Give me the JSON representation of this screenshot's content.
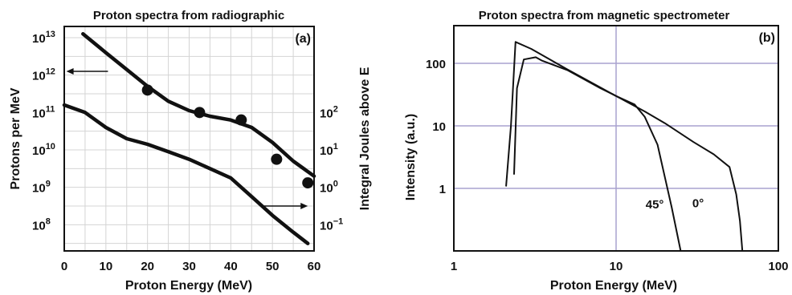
{
  "chart_data": [
    {
      "id": "a",
      "type": "line",
      "title": "Proton spectra from radiographic",
      "panel_label": "(a)",
      "xlabel": "Proton Energy (MeV)",
      "ylabel": "Protons per MeV",
      "y2label": "Integral Joules above E",
      "xlim": [
        0,
        60
      ],
      "ylim_log10": [
        7.3,
        13.3
      ],
      "y2_offset_log10": 9,
      "x_ticks": [
        0,
        10,
        20,
        30,
        40,
        50,
        60
      ],
      "x_tick_labels": [
        "0",
        "10",
        "20",
        "30",
        "40",
        "50",
        "60"
      ],
      "y_ticks_log10": [
        8,
        9,
        10,
        11,
        12,
        13
      ],
      "y_tick_mantissa": "10",
      "y_tick_exponents": [
        "8",
        "9",
        "10",
        "11",
        "12",
        "13"
      ],
      "y2_ticks_log10": [
        -1,
        0,
        1,
        2
      ],
      "y2_tick_mantissa": "10",
      "y2_tick_exponents": [
        "−1",
        "0",
        "1",
        "2"
      ],
      "grid": true,
      "series": [
        {
          "axis": "left",
          "x": [
            4.5,
            10,
            15,
            20,
            25,
            30,
            35,
            40,
            45,
            50,
            55,
            60
          ],
          "log10_y": [
            13.1,
            12.6,
            12.15,
            11.7,
            11.3,
            11.05,
            10.9,
            10.8,
            10.6,
            10.2,
            9.7,
            9.3
          ]
        },
        {
          "axis": "left",
          "x": [
            0,
            5,
            10,
            15,
            20,
            25,
            30,
            35,
            40,
            45,
            50,
            55,
            58.5
          ],
          "log10_y": [
            11.2,
            11.0,
            10.6,
            10.3,
            10.15,
            9.95,
            9.75,
            9.5,
            9.25,
            8.75,
            8.25,
            7.8,
            7.5
          ]
        }
      ],
      "markers": {
        "x": [
          20,
          32.5,
          42.5,
          51,
          58.5
        ],
        "log10_y": [
          11.6,
          11.0,
          10.8,
          9.75,
          9.12
        ]
      },
      "arrows": [
        {
          "from_x": 10.5,
          "to_x": 0.5,
          "log10_y": 12.1
        },
        {
          "from_x": 48,
          "to_x": 58.5,
          "log10_y": 8.5
        }
      ]
    },
    {
      "id": "b",
      "type": "line",
      "title": "Proton spectra from magnetic spectrometer",
      "panel_label": "(b)",
      "xlabel": "Proton Energy (MeV)",
      "ylabel": "Intensity (a.u.)",
      "xscale": "log",
      "yscale": "log",
      "xlim": [
        1,
        100
      ],
      "ylim": [
        0.1,
        400
      ],
      "x_ticks": [
        1,
        10,
        100
      ],
      "x_tick_labels": [
        "1",
        "10",
        "100"
      ],
      "y_ticks": [
        1,
        10,
        100
      ],
      "y_tick_labels": [
        "1",
        "10",
        "100"
      ],
      "grid": true,
      "series": [
        {
          "name": "0°",
          "x": [
            2.1,
            2.25,
            2.4,
            3,
            5,
            10,
            15,
            20,
            30,
            40,
            50,
            55,
            58,
            60
          ],
          "y": [
            1.1,
            10,
            220,
            170,
            80,
            30,
            17,
            11,
            5.5,
            3.5,
            2.2,
            0.8,
            0.3,
            0.1
          ]
        },
        {
          "name": "45°",
          "x": [
            2.35,
            2.45,
            2.7,
            3.2,
            3.5,
            5,
            8,
            10,
            13,
            15,
            18,
            20,
            22,
            25
          ],
          "y": [
            1.7,
            40,
            115,
            125,
            110,
            78,
            40,
            30,
            22,
            14,
            5,
            1.5,
            0.5,
            0.1
          ]
        }
      ],
      "annotations": [
        {
          "text": "45°",
          "x": 17.3,
          "y": 0.48
        },
        {
          "text": "0°",
          "x": 32,
          "y": 0.5
        }
      ]
    }
  ]
}
